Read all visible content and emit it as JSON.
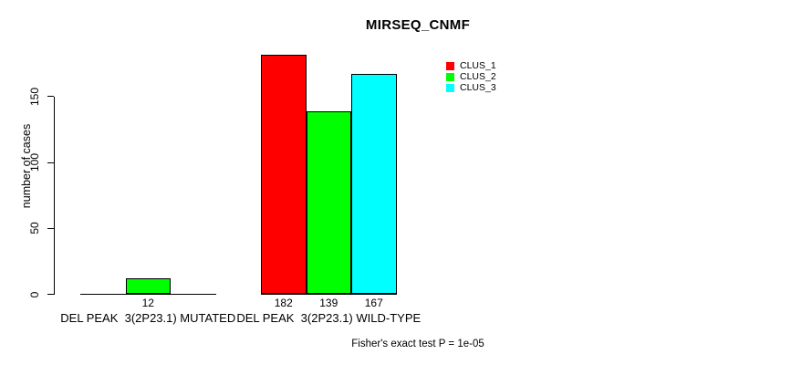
{
  "chart_data": {
    "type": "bar",
    "title": "MIRSEQ_CNMF",
    "ylabel": "number of cases",
    "xlabel": "",
    "y_ticks": [
      0,
      50,
      100,
      150
    ],
    "ylim": [
      0,
      190
    ],
    "grid": false,
    "legend_position": "top-right",
    "categories": [
      "DEL PEAK  3(2P23.1) MUTATED",
      "DEL PEAK  3(2P23.1) WILD-TYPE"
    ],
    "series": [
      {
        "name": "CLUS_1",
        "color": "#ff0000",
        "values": [
          0,
          182
        ]
      },
      {
        "name": "CLUS_2",
        "color": "#00ff00",
        "values": [
          12,
          139
        ]
      },
      {
        "name": "CLUS_3",
        "color": "#00ffff",
        "values": [
          0,
          167
        ]
      }
    ],
    "value_label_rule": "shown only for bars greater than zero",
    "footnote": "Fisher's exact test P = 1e-05"
  },
  "colors": {
    "background": "#ffffff",
    "axis": "#000000",
    "text": "#000000",
    "bar_border": "#000000"
  }
}
